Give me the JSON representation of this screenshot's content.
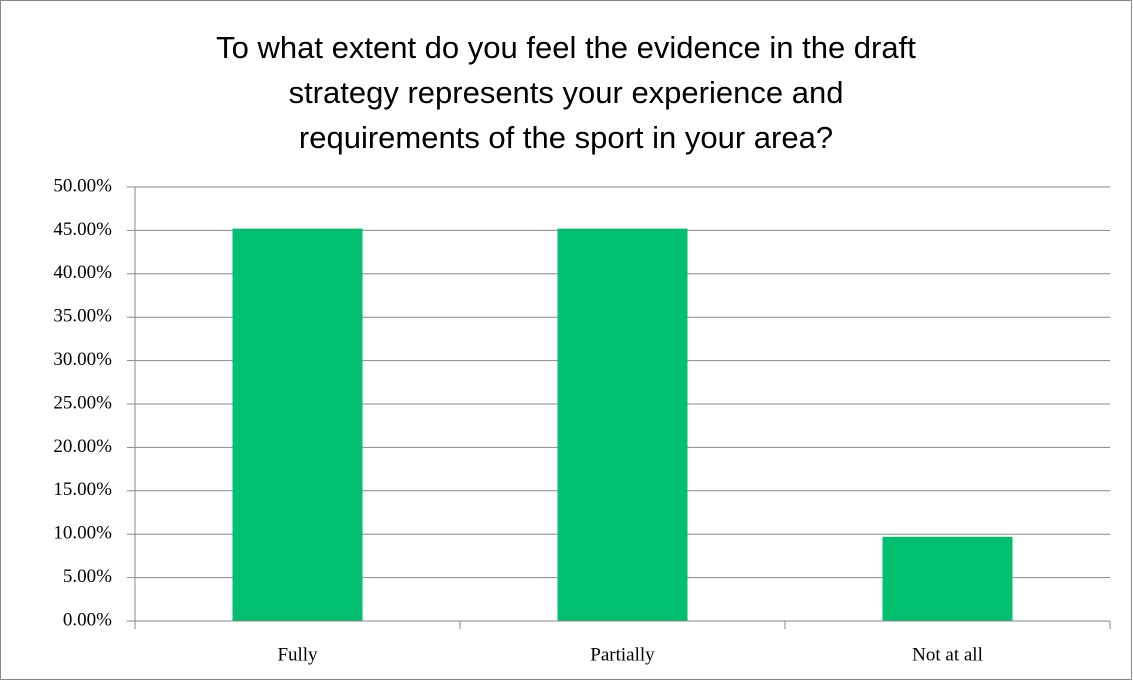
{
  "chart_data": {
    "type": "bar",
    "title": [
      "To what extent do you feel the evidence in the draft",
      "strategy represents your experience and",
      "requirements of the sport in your area?"
    ],
    "categories": [
      "Fully",
      "Partially",
      "Not at all"
    ],
    "values": [
      45.2,
      45.2,
      9.7
    ],
    "color": "#00c070",
    "ylim": [
      0,
      50
    ],
    "yticks": [
      {
        "value": 0,
        "label": "0.00%"
      },
      {
        "value": 5,
        "label": "5.00%"
      },
      {
        "value": 10,
        "label": "10.00%"
      },
      {
        "value": 15,
        "label": "15.00%"
      },
      {
        "value": 20,
        "label": "20.00%"
      },
      {
        "value": 25,
        "label": "25.00%"
      },
      {
        "value": 30,
        "label": "30.00%"
      },
      {
        "value": 35,
        "label": "35.00%"
      },
      {
        "value": 40,
        "label": "40.00%"
      },
      {
        "value": 45,
        "label": "45.00%"
      },
      {
        "value": 50,
        "label": "50.00%"
      }
    ],
    "grid": true
  }
}
